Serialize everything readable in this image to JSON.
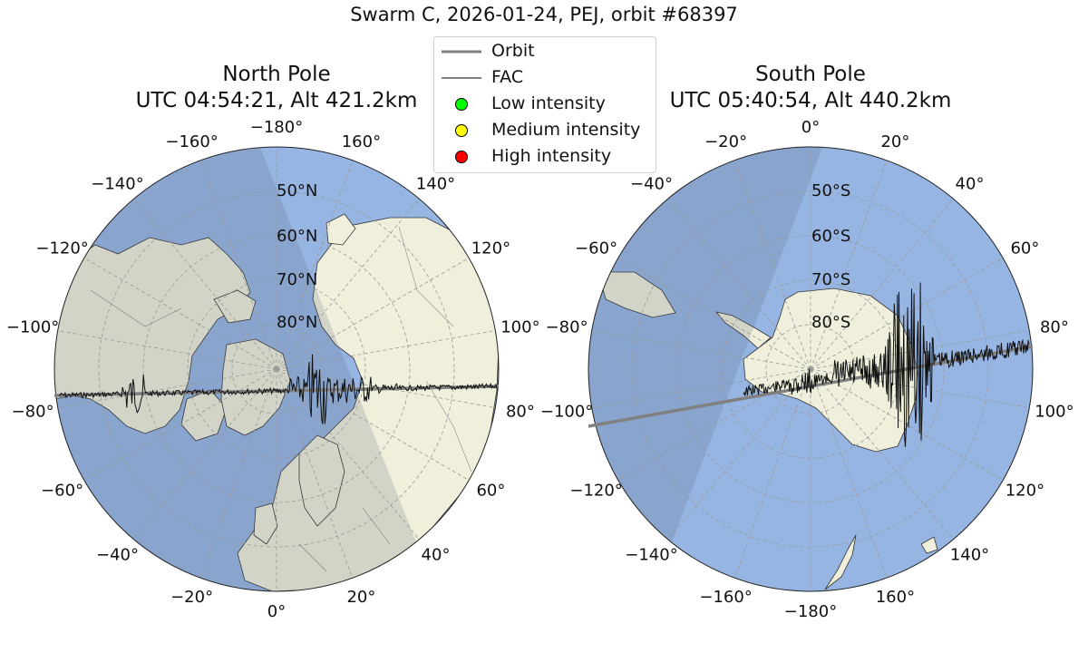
{
  "figure": {
    "title": "Swarm C, 2026-01-24, PEJ, orbit #68397"
  },
  "legend": {
    "items": [
      {
        "label": "Orbit",
        "type": "thick-line",
        "color": "#808080"
      },
      {
        "label": "FAC",
        "type": "thin-line",
        "color": "#000000"
      },
      {
        "label": "Low intensity",
        "type": "dot",
        "color": "#00ff00"
      },
      {
        "label": "Medium intensity",
        "type": "dot",
        "color": "#ffff00"
      },
      {
        "label": "High intensity",
        "type": "dot",
        "color": "#ff0000"
      }
    ]
  },
  "panels": {
    "north": {
      "title_line1": "North Pole",
      "title_line2": "UTC 04:54:21, Alt 421.2km",
      "lon_labels": [
        "−180°",
        "160°",
        "140°",
        "120°",
        "100°",
        "80°",
        "60°",
        "40°",
        "20°",
        "0°",
        "−20°",
        "−40°",
        "−60°",
        "−80°",
        "−100°",
        "−120°",
        "−140°",
        "−160°"
      ],
      "lat_labels": [
        "50°N",
        "60°N",
        "70°N",
        "80°N"
      ]
    },
    "south": {
      "title_line1": "South Pole",
      "title_line2": "UTC 05:40:54, Alt 440.2km",
      "lon_labels": [
        "0°",
        "20°",
        "40°",
        "60°",
        "80°",
        "100°",
        "120°",
        "140°",
        "160°",
        "−180°",
        "−160°",
        "−140°",
        "−120°",
        "−100°",
        "−80°",
        "−60°",
        "−40°",
        "−20°"
      ],
      "lat_labels": [
        "50°S",
        "60°S",
        "70°S",
        "80°S"
      ]
    }
  },
  "colors": {
    "ocean": "#97b5e2",
    "land": "#efefdb",
    "night_shade": "rgba(80,90,110,0.18)",
    "orbit": "#808080",
    "fac": "#111111",
    "grid": "#9a9a9a"
  }
}
